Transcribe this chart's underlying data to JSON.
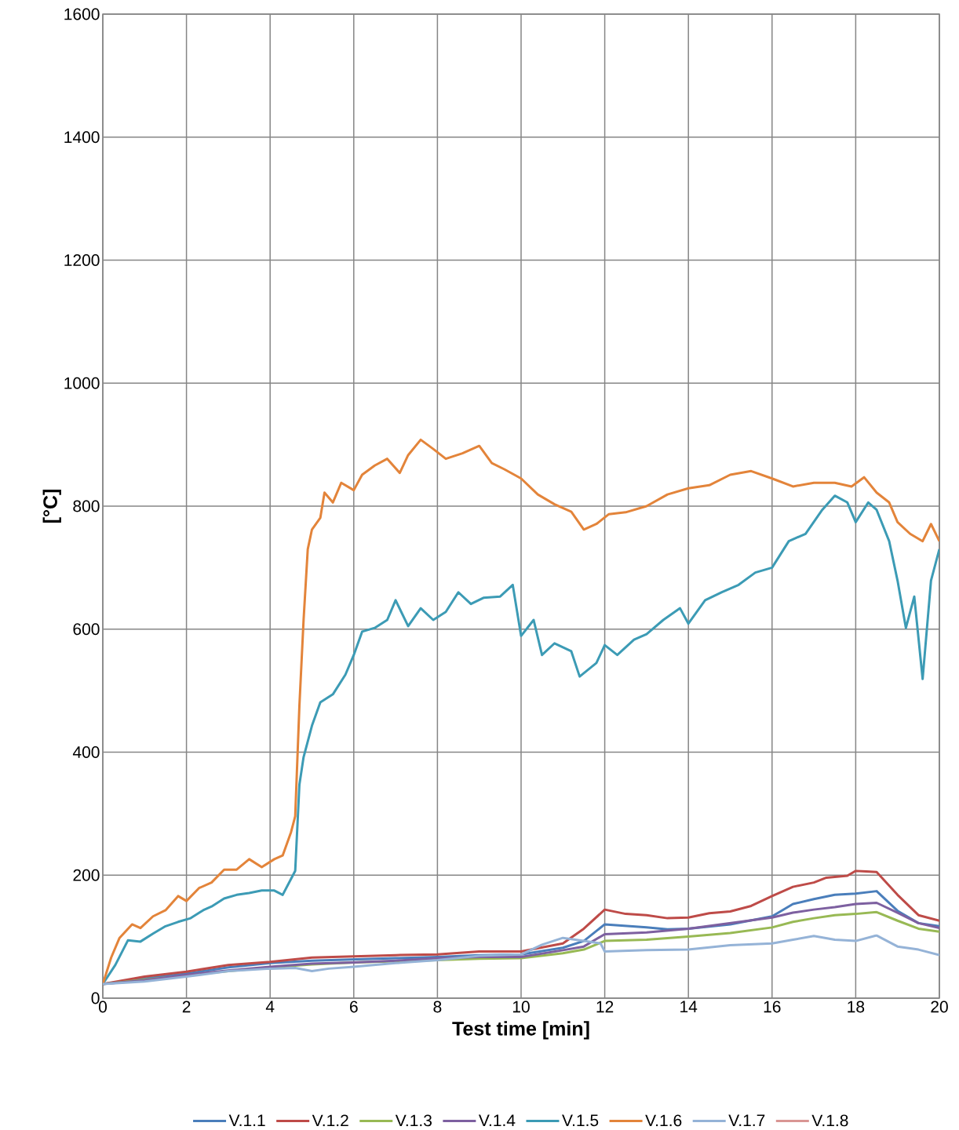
{
  "chart_data": {
    "type": "line",
    "xlabel": "Test time [min]",
    "ylabel": "[°C]",
    "xlim": [
      0,
      20
    ],
    "ylim": [
      0,
      1600
    ],
    "xticks": [
      0,
      2,
      4,
      6,
      8,
      10,
      12,
      14,
      16,
      18,
      20
    ],
    "yticks": [
      0,
      200,
      400,
      600,
      800,
      1000,
      1200,
      1400,
      1600
    ],
    "grid": true,
    "legend": "bottom",
    "marker": "none",
    "line_style": "solid",
    "series": [
      {
        "name": "V.1.1",
        "color": "#4a7ebb",
        "x": [
          0,
          1,
          2,
          3,
          4,
          5,
          6,
          7,
          8,
          9,
          10,
          11,
          11.5,
          12,
          13,
          13.5,
          14,
          15,
          16,
          16.5,
          17,
          17.5,
          18,
          18.5,
          19,
          19.5,
          20
        ],
        "values": [
          23,
          32,
          40,
          50,
          57,
          61,
          63,
          65,
          67,
          70,
          71,
          82,
          93,
          120,
          115,
          112,
          113,
          120,
          133,
          153,
          161,
          168,
          170,
          174,
          142,
          122,
          117
        ]
      },
      {
        "name": "V.1.2",
        "color": "#be4b48",
        "x": [
          0,
          1,
          2,
          3,
          4,
          5,
          6,
          7,
          8,
          9,
          10,
          11,
          11.5,
          12,
          12.5,
          13,
          13.5,
          14,
          14.5,
          15,
          15.5,
          16,
          16.5,
          17,
          17.3,
          17.8,
          18,
          18.5,
          19,
          19.5,
          20
        ],
        "values": [
          23,
          35,
          43,
          54,
          59,
          66,
          68,
          70,
          71,
          76,
          76,
          89,
          113,
          144,
          137,
          135,
          130,
          131,
          138,
          141,
          150,
          166,
          181,
          188,
          196,
          199,
          207,
          205,
          168,
          135,
          126
        ]
      },
      {
        "name": "V.1.3",
        "color": "#98b954",
        "x": [
          0,
          1,
          2,
          3,
          4,
          5,
          6,
          7,
          8,
          9,
          10,
          11,
          11.5,
          12,
          13,
          14,
          15,
          16,
          16.5,
          17,
          17.5,
          18,
          18.5,
          19,
          19.5,
          20
        ],
        "values": [
          23,
          30,
          37,
          44,
          50,
          55,
          58,
          60,
          62,
          64,
          65,
          73,
          79,
          93,
          95,
          100,
          106,
          115,
          124,
          130,
          135,
          137,
          140,
          126,
          113,
          108
        ]
      },
      {
        "name": "V.1.4",
        "color": "#7d60a0",
        "x": [
          0,
          1,
          2,
          3,
          4,
          5,
          6,
          7,
          8,
          9,
          10,
          11,
          11.5,
          12,
          13,
          14,
          15,
          16,
          16.5,
          17,
          17.5,
          18,
          18.5,
          19,
          19.5,
          20
        ],
        "values": [
          23,
          29,
          38,
          45,
          51,
          56,
          58,
          61,
          65,
          67,
          67,
          78,
          84,
          104,
          107,
          113,
          122,
          131,
          139,
          144,
          148,
          153,
          155,
          139,
          122,
          114
        ]
      },
      {
        "name": "V.1.5",
        "color": "#3c9bb5",
        "x": [
          0,
          0.3,
          0.6,
          0.9,
          1.2,
          1.5,
          1.8,
          2.1,
          2.4,
          2.6,
          2.9,
          3.2,
          3.5,
          3.8,
          4.1,
          4.3,
          4.5,
          4.6,
          4.7,
          4.8,
          5.0,
          5.2,
          5.5,
          5.8,
          6.0,
          6.2,
          6.5,
          6.8,
          7.0,
          7.3,
          7.6,
          7.9,
          8.2,
          8.5,
          8.8,
          9.1,
          9.5,
          9.8,
          10.0,
          10.3,
          10.5,
          10.8,
          11.2,
          11.4,
          11.8,
          12.0,
          12.3,
          12.7,
          13.0,
          13.4,
          13.8,
          14.0,
          14.4,
          14.8,
          15.2,
          15.6,
          16.0,
          16.4,
          16.8,
          17.2,
          17.5,
          17.8,
          18.0,
          18.3,
          18.5,
          18.8,
          19.0,
          19.2,
          19.4,
          19.6,
          19.8,
          20.0
        ],
        "values": [
          23,
          54,
          94,
          92,
          105,
          117,
          124,
          130,
          143,
          149,
          162,
          168,
          171,
          175,
          175,
          168,
          194,
          207,
          347,
          392,
          443,
          481,
          494,
          526,
          558,
          596,
          602,
          615,
          647,
          605,
          634,
          615,
          628,
          660,
          641,
          651,
          653,
          672,
          589,
          615,
          558,
          577,
          564,
          523,
          545,
          574,
          558,
          583,
          592,
          615,
          634,
          609,
          647,
          660,
          672,
          692,
          700,
          743,
          755,
          794,
          817,
          806,
          774,
          806,
          794,
          743,
          679,
          602,
          653,
          519,
          679,
          730
        ]
      },
      {
        "name": "V.1.6",
        "color": "#e3843a",
        "x": [
          0,
          0.2,
          0.4,
          0.7,
          0.9,
          1.2,
          1.5,
          1.8,
          2.0,
          2.3,
          2.6,
          2.9,
          3.2,
          3.5,
          3.8,
          4.1,
          4.3,
          4.5,
          4.6,
          4.7,
          4.8,
          4.9,
          5.0,
          5.2,
          5.3,
          5.5,
          5.7,
          6.0,
          6.2,
          6.5,
          6.8,
          7.1,
          7.3,
          7.6,
          7.9,
          8.2,
          8.6,
          9.0,
          9.3,
          9.6,
          10.0,
          10.4,
          10.8,
          11.2,
          11.5,
          11.8,
          12.1,
          12.5,
          13.0,
          13.5,
          14.0,
          14.5,
          15.0,
          15.5,
          16.0,
          16.5,
          17.0,
          17.5,
          17.9,
          18.2,
          18.5,
          18.8,
          19.0,
          19.3,
          19.6,
          19.8,
          20.0
        ],
        "values": [
          23,
          66,
          98,
          120,
          114,
          133,
          143,
          166,
          158,
          179,
          188,
          209,
          209,
          226,
          213,
          226,
          232,
          270,
          296,
          475,
          615,
          730,
          762,
          781,
          822,
          806,
          838,
          826,
          851,
          866,
          877,
          854,
          883,
          908,
          893,
          877,
          886,
          898,
          870,
          860,
          845,
          819,
          803,
          791,
          762,
          771,
          787,
          790,
          800,
          819,
          829,
          834,
          851,
          857,
          845,
          832,
          838,
          838,
          832,
          847,
          822,
          806,
          774,
          755,
          743,
          771,
          743
        ]
      },
      {
        "name": "V.1.7",
        "color": "#95b3d7",
        "x": [
          0,
          1,
          2,
          3,
          4,
          4.6,
          5,
          5.4,
          6,
          7,
          8,
          9,
          10,
          10.5,
          11,
          11.5,
          11.9,
          12,
          13,
          14,
          15,
          16,
          16.5,
          17,
          17.5,
          18,
          18.5,
          19,
          19.5,
          20
        ],
        "values": [
          23,
          27,
          35,
          44,
          48,
          49,
          44,
          48,
          51,
          57,
          62,
          69,
          71,
          87,
          98,
          93,
          89,
          76,
          78,
          79,
          86,
          89,
          95,
          101,
          95,
          93,
          102,
          84,
          79,
          70
        ]
      },
      {
        "name": "V.1.8",
        "color": "#d99694",
        "values": [
          null
        ]
      }
    ]
  }
}
